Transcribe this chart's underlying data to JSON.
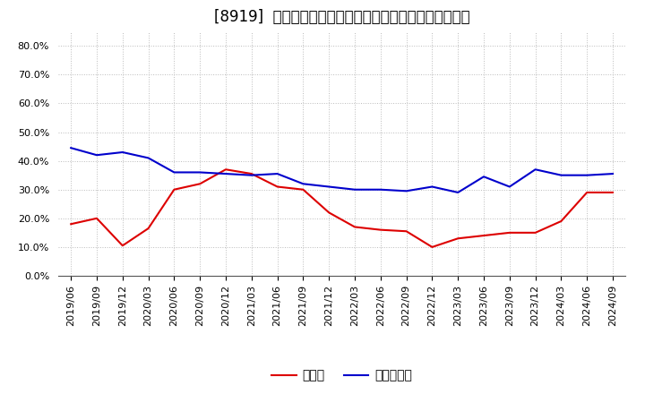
{
  "title": "[8919]  現頲金、有利子負債の総資産に対する比率の推移",
  "x_labels": [
    "2019/06",
    "2019/09",
    "2019/12",
    "2020/03",
    "2020/06",
    "2020/09",
    "2020/12",
    "2021/03",
    "2021/06",
    "2021/09",
    "2021/12",
    "2022/03",
    "2022/06",
    "2022/09",
    "2022/12",
    "2023/03",
    "2023/06",
    "2023/09",
    "2023/12",
    "2024/03",
    "2024/06",
    "2024/09"
  ],
  "cash": [
    0.18,
    0.2,
    0.105,
    0.165,
    0.3,
    0.32,
    0.37,
    0.355,
    0.31,
    0.3,
    0.22,
    0.17,
    0.16,
    0.155,
    0.1,
    0.13,
    0.14,
    0.15,
    0.15,
    0.19,
    0.29,
    0.29
  ],
  "debt": [
    0.445,
    0.42,
    0.43,
    0.41,
    0.36,
    0.36,
    0.355,
    0.35,
    0.355,
    0.32,
    0.31,
    0.3,
    0.3,
    0.295,
    0.31,
    0.29,
    0.345,
    0.31,
    0.37,
    0.35,
    0.35,
    0.355
  ],
  "cash_color": "#dd0000",
  "debt_color": "#0000cc",
  "background_color": "#ffffff",
  "grid_color": "#aaaaaa",
  "legend_cash": "現頲金",
  "legend_debt": "有利子負債",
  "ylim": [
    0.0,
    0.85
  ],
  "yticks": [
    0.0,
    0.1,
    0.2,
    0.3,
    0.4,
    0.5,
    0.6,
    0.7,
    0.8
  ],
  "title_fontsize": 12,
  "tick_fontsize": 8,
  "legend_fontsize": 10,
  "line_width": 1.5
}
